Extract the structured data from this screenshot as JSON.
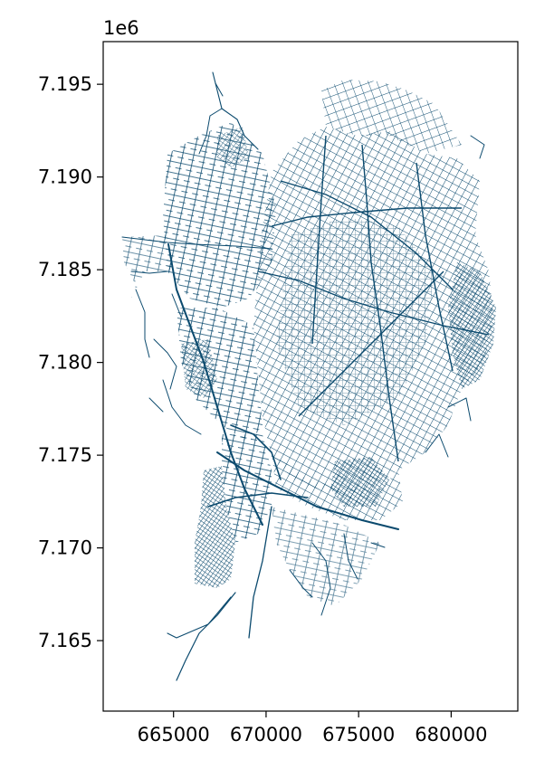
{
  "chart_data": {
    "type": "map",
    "title": "",
    "xlabel": "",
    "ylabel": "",
    "y_offset_label": "1e6",
    "xlim": [
      661200,
      683600
    ],
    "ylim": [
      7161200,
      7197300
    ],
    "x_ticks": [
      665000,
      670000,
      675000,
      680000
    ],
    "x_tick_labels": [
      "665000",
      "670000",
      "675000",
      "680000"
    ],
    "y_ticks": [
      7.165,
      7.17,
      7.175,
      7.18,
      7.185,
      7.19,
      7.195
    ],
    "y_tick_labels": [
      "7.165",
      "7.170",
      "7.175",
      "7.180",
      "7.185",
      "7.190",
      "7.195"
    ],
    "line_color": "#0b4a6e",
    "grid": false,
    "legend": "none"
  }
}
